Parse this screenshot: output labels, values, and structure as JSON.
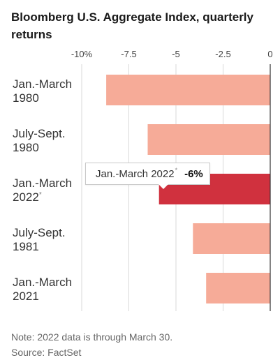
{
  "title": "Bloomberg U.S. Aggregate Index, quarterly returns",
  "note": "Note: 2022 data is through March 30.",
  "source": "Source: FactSet",
  "tooltip": {
    "label": "Jan.-March 2022",
    "marker": "*",
    "value": "-6%"
  },
  "colors": {
    "bar": "#f6ab98",
    "highlight": "#d0313e",
    "grid": "#d9d9d9",
    "zero_line": "#333333"
  },
  "chart_data": {
    "type": "bar",
    "orientation": "horizontal",
    "categories": [
      {
        "line1": "Jan.-March",
        "line2": "1980",
        "marker": ""
      },
      {
        "line1": "July-Sept.",
        "line2": "1980",
        "marker": ""
      },
      {
        "line1": "Jan.-March",
        "line2": "2022",
        "marker": "*"
      },
      {
        "line1": "July-Sept.",
        "line2": "1981",
        "marker": ""
      },
      {
        "line1": "Jan.-March",
        "line2": "2021",
        "marker": ""
      }
    ],
    "values": [
      -8.7,
      -6.5,
      -5.9,
      -4.1,
      -3.4
    ],
    "highlight_index": 2,
    "xlim": [
      -10,
      0
    ],
    "xticks": [
      -10,
      -7.5,
      -5,
      -2.5,
      0
    ],
    "xtick_labels": [
      "-10%",
      "-7.5",
      "-5",
      "-2.5",
      "0"
    ],
    "xlabel": "",
    "ylabel": "",
    "grid": true
  }
}
